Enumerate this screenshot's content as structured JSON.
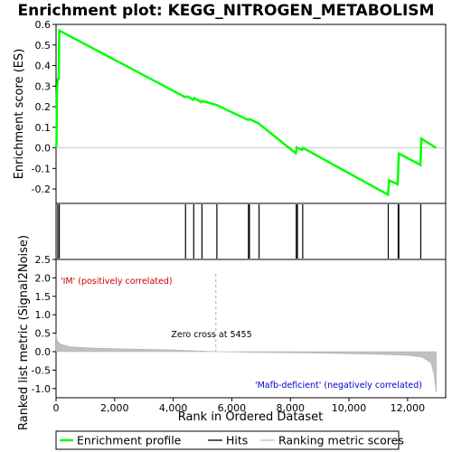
{
  "chart_data": {
    "type": "line",
    "title": "Enrichment plot: KEGG_NITROGEN_METABOLISM",
    "xlabel": "Rank in Ordered Dataset",
    "es_panel": {
      "ylabel": "Enrichment score (ES)",
      "ylim": [
        -0.27,
        0.6
      ],
      "yticks": [
        -0.2,
        -0.1,
        0.0,
        0.1,
        0.2,
        0.3,
        0.4,
        0.5,
        0.6
      ],
      "series": [
        {
          "name": "Enrichment profile",
          "color": "#00ff00",
          "points": [
            [
              0,
              0.0
            ],
            [
              15,
              0.02
            ],
            [
              30,
              0.27
            ],
            [
              55,
              0.33
            ],
            [
              75,
              0.34
            ],
            [
              90,
              0.33
            ],
            [
              110,
              0.57
            ],
            [
              4400,
              0.247
            ],
            [
              4480,
              0.25
            ],
            [
              4680,
              0.233
            ],
            [
              4720,
              0.242
            ],
            [
              4960,
              0.222
            ],
            [
              5000,
              0.228
            ],
            [
              5480,
              0.208
            ],
            [
              6560,
              0.135
            ],
            [
              6600,
              0.14
            ],
            [
              6900,
              0.12
            ],
            [
              8180,
              -0.026
            ],
            [
              8220,
              0.002
            ],
            [
              8260,
              -0.002
            ],
            [
              8400,
              -0.01
            ],
            [
              8430,
              0.0
            ],
            [
              11330,
              -0.228
            ],
            [
              11370,
              -0.158
            ],
            [
              11660,
              -0.177
            ],
            [
              11700,
              -0.028
            ],
            [
              12440,
              -0.083
            ],
            [
              12470,
              0.045
            ],
            [
              12970,
              0.0
            ]
          ]
        }
      ]
    },
    "hits": [
      60,
      110,
      4420,
      4700,
      4980,
      5490,
      6570,
      6600,
      6930,
      8200,
      8240,
      8420,
      11340,
      11680,
      11700,
      12450
    ],
    "metric_panel": {
      "ylabel": "Ranked list metric (Signal2Noise)",
      "ylim": [
        -1.25,
        2.5
      ],
      "yticks": [
        -1.0,
        -0.5,
        0.0,
        0.5,
        1.0,
        1.5,
        2.0,
        2.5
      ],
      "profile": [
        [
          0,
          0.48
        ],
        [
          40,
          0.3
        ],
        [
          150,
          0.2
        ],
        [
          500,
          0.13
        ],
        [
          1200,
          0.1
        ],
        [
          2500,
          0.07
        ],
        [
          4000,
          0.05
        ],
        [
          5455,
          0.0
        ],
        [
          7000,
          -0.02
        ],
        [
          9000,
          -0.04
        ],
        [
          11000,
          -0.07
        ],
        [
          12000,
          -0.1
        ],
        [
          12500,
          -0.15
        ],
        [
          12800,
          -0.3
        ],
        [
          12900,
          -0.6
        ],
        [
          12980,
          -1.1
        ]
      ],
      "zero_cross": 5455
    },
    "xlim": [
      0,
      13300
    ],
    "xticks": [
      0,
      2000,
      4000,
      6000,
      8000,
      10000,
      12000
    ],
    "xtick_labels": [
      "0",
      "2,000",
      "4,000",
      "6,000",
      "8,000",
      "10,000",
      "12,000"
    ],
    "annotations": {
      "positive": "'IM' (positively correlated)",
      "negative": "'Mafb-deficient' (negatively correlated)",
      "zero_cross": "Zero cross at 5455"
    },
    "legend": [
      "Enrichment profile",
      "Hits",
      "Ranking metric scores"
    ]
  },
  "colors": {
    "es_line": "#00ff00",
    "positive_text": "#cc0000",
    "negative_text": "#0000cc",
    "metric_fill": "#c0c0c0"
  },
  "heatbar": [
    {
      "from": 0,
      "to": 2100,
      "color": "#f04e5c"
    },
    {
      "from": 2100,
      "to": 2950,
      "color": "#f66f7c"
    },
    {
      "from": 2950,
      "to": 4050,
      "color": "#f99197"
    },
    {
      "from": 4050,
      "to": 5200,
      "color": "#fbb2c5"
    },
    {
      "from": 5200,
      "to": 6600,
      "color": "#fbc2dc"
    },
    {
      "from": 6600,
      "to": 8150,
      "color": "#dcdcf8"
    },
    {
      "from": 8150,
      "to": 9200,
      "color": "#c8c8f6"
    },
    {
      "from": 9200,
      "to": 10200,
      "color": "#b2b2f2"
    },
    {
      "from": 10200,
      "to": 10950,
      "color": "#8e8eee"
    },
    {
      "from": 10950,
      "to": 12100,
      "color": "#6c6ce6"
    },
    {
      "from": 12100,
      "to": 12650,
      "color": "#5252dc"
    },
    {
      "from": 12650,
      "to": 12980,
      "color": "#2020c0"
    }
  ]
}
